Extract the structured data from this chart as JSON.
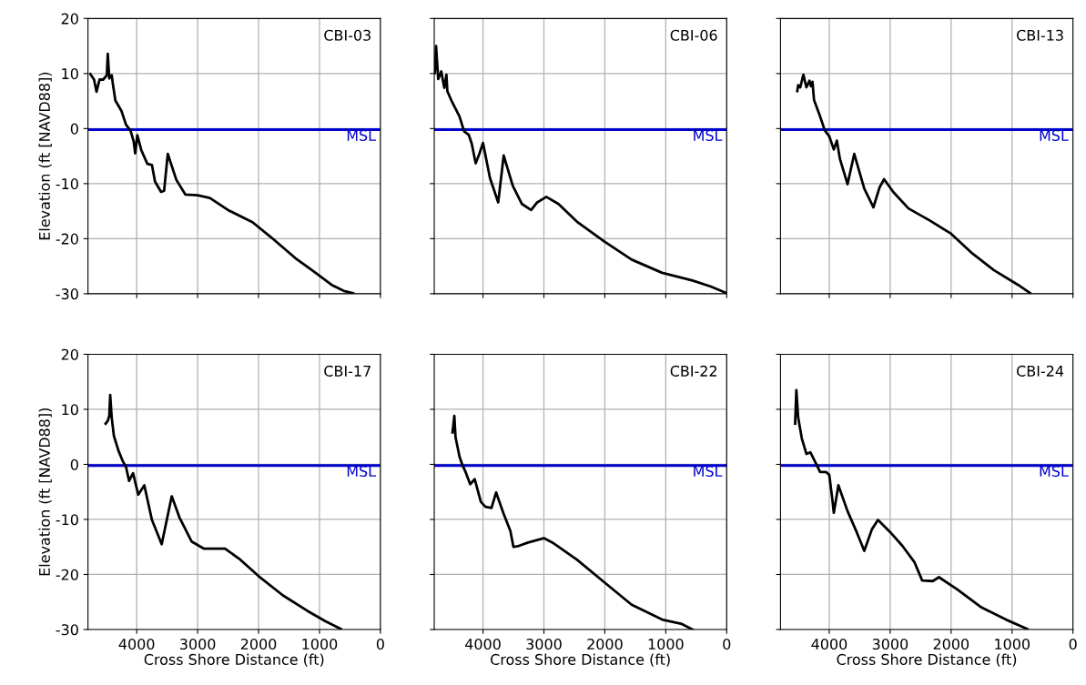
{
  "chart_data": [
    {
      "type": "line",
      "title": "CBI-03",
      "ylabel": "Elevation (ft [NAVD88])",
      "xlim": [
        4800,
        0
      ],
      "xticks": [
        4000,
        3000,
        2000,
        1000,
        0
      ],
      "ylim": [
        -30,
        20
      ],
      "yticks": [
        -30,
        -20,
        -10,
        0,
        10,
        20
      ],
      "grid": true,
      "tick_labels": "y",
      "ref_lines": [
        {
          "axis": "y",
          "value": -0.2,
          "label": "MSL",
          "color": "#0000cc"
        }
      ],
      "series": [
        {
          "color": "#000000",
          "x": [
            4760,
            4700,
            4660,
            4610,
            4550,
            4490,
            4475,
            4450,
            4410,
            4390,
            4350,
            4250,
            4175,
            4100,
            4050,
            4025,
            3990,
            3925,
            3825,
            3750,
            3700,
            3600,
            3550,
            3490,
            3350,
            3200,
            3000,
            2800,
            2500,
            2100,
            1800,
            1400,
            1100,
            800,
            600,
            450
          ],
          "values": [
            9.9,
            8.9,
            6.7,
            8.9,
            8.9,
            9.7,
            13.6,
            9.1,
            9.7,
            8.0,
            5.1,
            3.2,
            0.7,
            -0.4,
            -2.3,
            -4.5,
            -1.2,
            -3.9,
            -6.4,
            -6.6,
            -9.6,
            -11.5,
            -11.3,
            -4.6,
            -9.3,
            -12.0,
            -12.1,
            -12.6,
            -14.8,
            -17.0,
            -19.7,
            -23.5,
            -25.9,
            -28.4,
            -29.5,
            -29.9
          ]
        }
      ]
    },
    {
      "type": "line",
      "title": "CBI-06",
      "xlim": [
        4800,
        0
      ],
      "xticks": [
        4000,
        3000,
        2000,
        1000,
        0
      ],
      "ylim": [
        -30,
        20
      ],
      "yticks": [
        -30,
        -20,
        -10,
        0,
        10,
        20
      ],
      "grid": true,
      "tick_labels": false,
      "ref_lines": [
        {
          "axis": "y",
          "value": -0.2,
          "label": "MSL",
          "color": "#0000cc"
        }
      ],
      "series": [
        {
          "color": "#000000",
          "x": [
            4790,
            4770,
            4735,
            4685,
            4635,
            4600,
            4585,
            4510,
            4385,
            4310,
            4235,
            4185,
            4120,
            4060,
            4000,
            3885,
            3750,
            3660,
            3510,
            3360,
            3210,
            3110,
            2960,
            2760,
            2460,
            2010,
            1560,
            1060,
            560,
            260,
            20
          ],
          "values": [
            10.1,
            15.0,
            9.0,
            10.4,
            7.4,
            9.8,
            6.8,
            4.9,
            2.2,
            -0.5,
            -1.1,
            -2.7,
            -6.3,
            -4.6,
            -2.6,
            -9.0,
            -13.4,
            -4.9,
            -10.4,
            -13.7,
            -14.8,
            -13.4,
            -12.4,
            -13.7,
            -16.9,
            -20.5,
            -23.8,
            -26.2,
            -27.6,
            -28.7,
            -29.8
          ]
        }
      ]
    },
    {
      "type": "line",
      "title": "CBI-13",
      "xlim": [
        4800,
        0
      ],
      "xticks": [
        4000,
        3000,
        2000,
        1000,
        0
      ],
      "ylim": [
        -30,
        20
      ],
      "yticks": [
        -30,
        -20,
        -10,
        0,
        10,
        20
      ],
      "grid": true,
      "tick_labels": false,
      "ref_lines": [
        {
          "axis": "y",
          "value": -0.2,
          "label": "MSL",
          "color": "#0000cc"
        }
      ],
      "series": [
        {
          "color": "#000000",
          "x": [
            4525,
            4510,
            4475,
            4425,
            4375,
            4325,
            4300,
            4275,
            4250,
            4150,
            4075,
            4000,
            3925,
            3875,
            3825,
            3700,
            3590,
            3425,
            3275,
            3175,
            3100,
            2950,
            2700,
            2350,
            2000,
            1650,
            1300,
            900,
            700
          ],
          "values": [
            6.8,
            7.9,
            7.5,
            9.8,
            7.5,
            8.7,
            7.7,
            8.5,
            5.2,
            2.2,
            -0.3,
            -1.4,
            -3.8,
            -2.2,
            -5.5,
            -10.1,
            -4.6,
            -10.9,
            -14.3,
            -10.7,
            -9.2,
            -11.5,
            -14.5,
            -16.7,
            -19.1,
            -22.7,
            -25.7,
            -28.4,
            -29.9
          ]
        }
      ]
    },
    {
      "type": "line",
      "title": "CBI-17",
      "xlabel": "Cross Shore Distance (ft)",
      "ylabel": "Elevation (ft [NAVD88])",
      "xlim": [
        4800,
        0
      ],
      "xticks": [
        4000,
        3000,
        2000,
        1000,
        0
      ],
      "ylim": [
        -30,
        20
      ],
      "yticks": [
        -30,
        -20,
        -10,
        0,
        10,
        20
      ],
      "grid": true,
      "ref_lines": [
        {
          "axis": "y",
          "value": -0.2,
          "label": "MSL",
          "color": "#0000cc"
        }
      ],
      "series": [
        {
          "color": "#000000",
          "x": [
            4510,
            4475,
            4450,
            4435,
            4410,
            4375,
            4300,
            4225,
            4175,
            4125,
            4060,
            3975,
            3875,
            3750,
            3590,
            3425,
            3300,
            3100,
            2900,
            2550,
            2300,
            2000,
            1600,
            1200,
            900,
            650
          ],
          "values": [
            7.4,
            7.9,
            8.8,
            12.6,
            8.5,
            5.2,
            2.5,
            0.5,
            -0.5,
            -3.0,
            -1.6,
            -5.5,
            -3.8,
            -10.1,
            -14.5,
            -5.8,
            -9.6,
            -14.0,
            -15.3,
            -15.3,
            -17.3,
            -20.3,
            -23.8,
            -26.6,
            -28.5,
            -29.9
          ]
        }
      ]
    },
    {
      "type": "line",
      "title": "CBI-22",
      "xlabel": "Cross Shore Distance (ft)",
      "xlim": [
        4800,
        0
      ],
      "xticks": [
        4000,
        3000,
        2000,
        1000,
        0
      ],
      "ylim": [
        -30,
        20
      ],
      "yticks": [
        -30,
        -20,
        -10,
        0,
        10,
        20
      ],
      "grid": true,
      "tick_labels": "x",
      "ref_lines": [
        {
          "axis": "y",
          "value": -0.2,
          "label": "MSL",
          "color": "#0000cc"
        }
      ],
      "series": [
        {
          "color": "#000000",
          "x": [
            4500,
            4470,
            4450,
            4385,
            4335,
            4285,
            4210,
            4135,
            4035,
            3960,
            3860,
            3785,
            3660,
            3550,
            3500,
            3410,
            3260,
            3000,
            2860,
            2460,
            2010,
            1560,
            1060,
            735,
            560
          ],
          "values": [
            5.8,
            8.8,
            4.9,
            1.4,
            -0.2,
            -1.4,
            -3.6,
            -2.7,
            -6.8,
            -7.7,
            -7.9,
            -5.1,
            -9.0,
            -12.1,
            -15.0,
            -14.8,
            -14.2,
            -13.4,
            -14.2,
            -17.3,
            -21.4,
            -25.5,
            -28.2,
            -29.0,
            -30.0
          ]
        }
      ]
    },
    {
      "type": "line",
      "title": "CBI-24",
      "xlabel": "Cross Shore Distance (ft)",
      "xlim": [
        4800,
        0
      ],
      "xticks": [
        4000,
        3000,
        2000,
        1000,
        0
      ],
      "ylim": [
        -30,
        20
      ],
      "yticks": [
        -30,
        -20,
        -10,
        0,
        10,
        20
      ],
      "grid": true,
      "tick_labels": "x",
      "ref_lines": [
        {
          "axis": "y",
          "value": -0.2,
          "label": "MSL",
          "color": "#0000cc"
        }
      ],
      "series": [
        {
          "color": "#000000",
          "x": [
            4560,
            4540,
            4510,
            4450,
            4375,
            4310,
            4225,
            4150,
            4050,
            4000,
            3950,
            3925,
            3850,
            3700,
            3550,
            3425,
            3300,
            3200,
            3000,
            2800,
            2600,
            2475,
            2300,
            2200,
            1900,
            1500,
            1100,
            750
          ],
          "values": [
            7.4,
            13.5,
            8.5,
            4.7,
            1.9,
            2.2,
            0.3,
            -1.4,
            -1.4,
            -1.9,
            -6.3,
            -8.8,
            -3.8,
            -8.5,
            -12.3,
            -15.7,
            -11.8,
            -10.1,
            -12.3,
            -14.8,
            -17.8,
            -21.1,
            -21.2,
            -20.5,
            -22.7,
            -26.0,
            -28.2,
            -29.9
          ]
        }
      ]
    }
  ]
}
